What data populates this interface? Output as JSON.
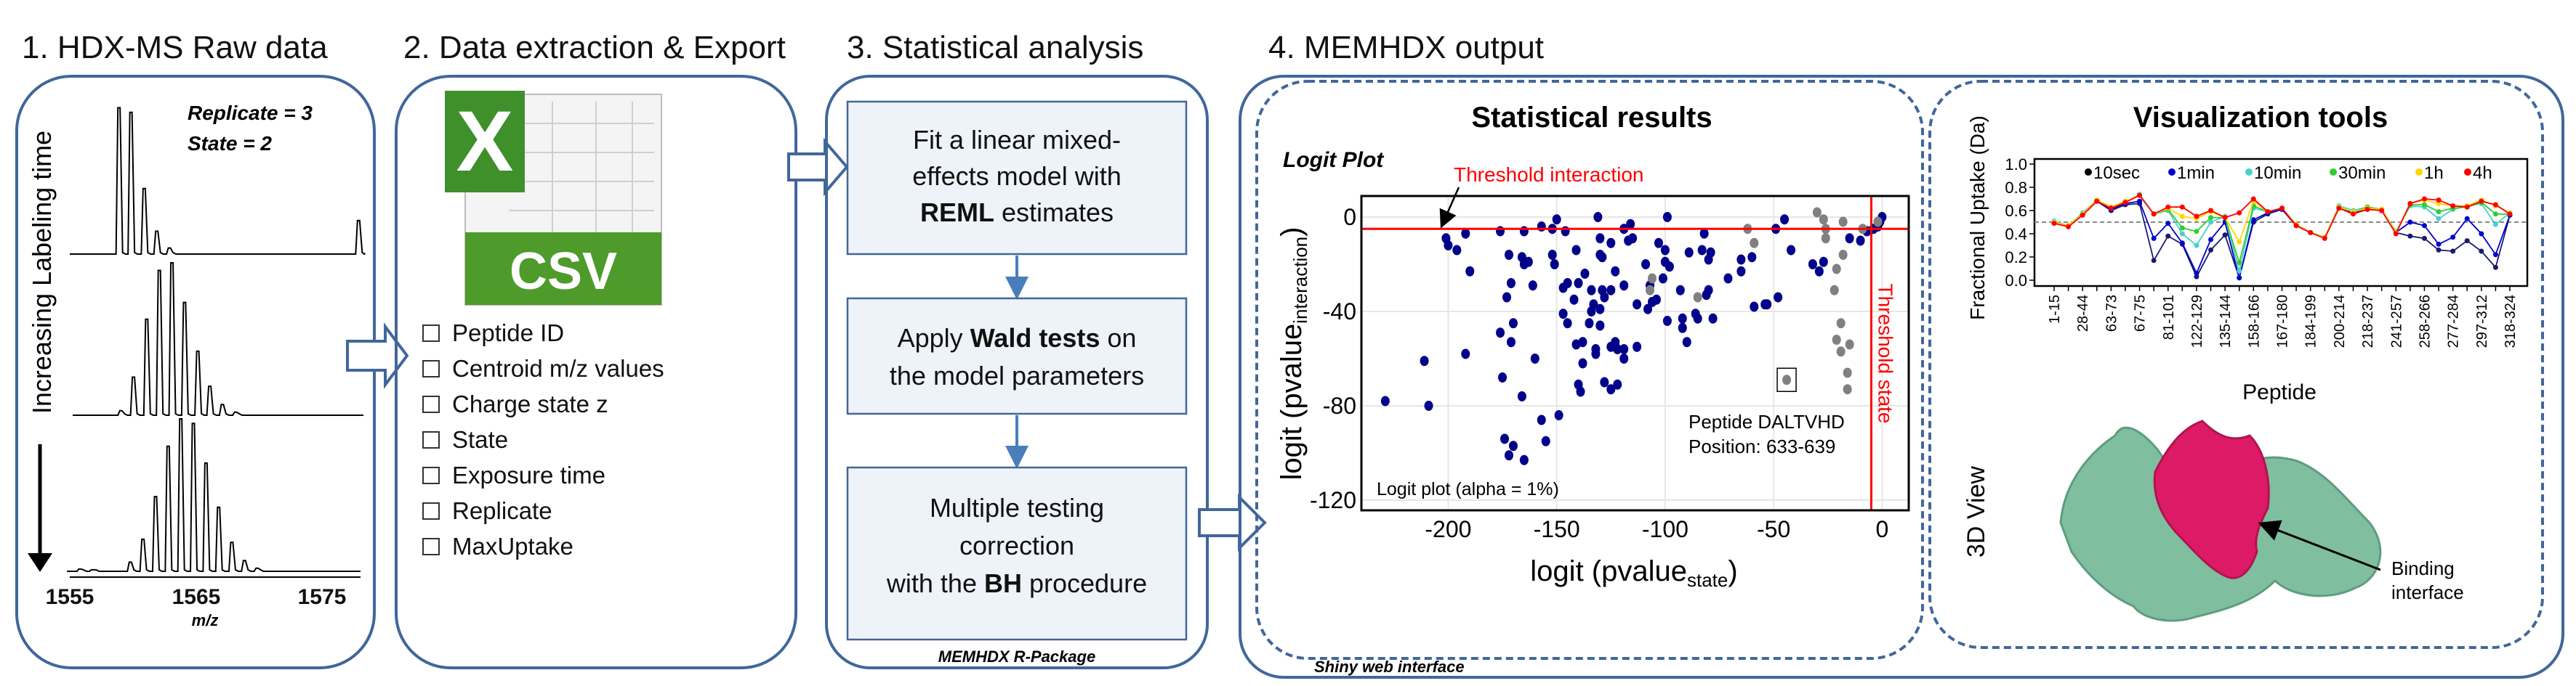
{
  "panels": {
    "raw": {
      "title": "1. HDX-MS Raw data",
      "replicate": "Replicate = 3",
      "state": "State = 2",
      "time_label": "Increasing Labeling time",
      "x_ticks": [
        "1555",
        "1565",
        "1575"
      ],
      "x_label": "m/z",
      "spectra": [
        {
          "peaks": [
            [
              1558.9,
              0.96
            ],
            [
              1559.85,
              0.93
            ],
            [
              1560.9,
              0.43
            ],
            [
              1561.9,
              0.15
            ],
            [
              1562.9,
              0.04
            ],
            [
              1577.9,
              0.22
            ]
          ]
        },
        {
          "peaks": [
            [
              1559.05,
              0.03
            ],
            [
              1560.05,
              0.25
            ],
            [
              1561.1,
              0.63
            ],
            [
              1562.1,
              0.95
            ],
            [
              1563.1,
              1.0
            ],
            [
              1564.1,
              0.74
            ],
            [
              1565.15,
              0.42
            ],
            [
              1566.1,
              0.19
            ],
            [
              1567.1,
              0.07
            ],
            [
              1568.15,
              0.02
            ]
          ]
        },
        {
          "peaks": [
            [
              1555.8,
              0.015
            ],
            [
              1556.8,
              0.01
            ],
            [
              1559.8,
              0.06
            ],
            [
              1560.8,
              0.21
            ],
            [
              1561.8,
              0.49
            ],
            [
              1562.8,
              0.82
            ],
            [
              1563.8,
              1.0
            ],
            [
              1564.8,
              0.97
            ],
            [
              1565.8,
              0.71
            ],
            [
              1566.8,
              0.42
            ],
            [
              1567.85,
              0.19
            ],
            [
              1568.85,
              0.07
            ],
            [
              1569.85,
              0.02
            ]
          ]
        }
      ]
    },
    "extract": {
      "title": "2. Data extraction & Export",
      "icon_letter": "X",
      "icon_label": "CSV",
      "fields": [
        "Peptide ID",
        "Centroid m/z values",
        "Charge state z",
        "State",
        "Exposure time",
        "Replicate",
        "MaxUptake"
      ]
    },
    "stats": {
      "title": "3. Statistical analysis",
      "step1": {
        "pre": "Fit a linear mixed-",
        "mid": "effects model with",
        "bold": "REML",
        "post": " estimates"
      },
      "step2": {
        "pre": "Apply ",
        "bold": "Wald tests",
        "post": " on",
        "line2": "the model parameters"
      },
      "step3": {
        "line1": "Multiple testing",
        "line2": "correction",
        "pre": "with the ",
        "bold": "BH",
        "post": " procedure"
      },
      "footer": "MEMHDX R-Package"
    },
    "output": {
      "title": "4. MEMHDX output",
      "footer": "Shiny web interface",
      "stat_title": "Statistical results",
      "viz_title": "Visualization tools",
      "view3d_label": "3D View",
      "binding_label_1": "Binding",
      "binding_label_2": "interface"
    }
  },
  "chart_data": [
    {
      "type": "scatter",
      "title": "Logit Plot",
      "xlabel": "logit (pvalue",
      "xlabel_sub": "state",
      "xlabel_end": ")",
      "ylabel": "logit (pvalue",
      "ylabel_sub": "interaction",
      "ylabel_end": ")",
      "xlim": [
        -240,
        12
      ],
      "ylim": [
        -124,
        9
      ],
      "x_ticks": [
        -200,
        -150,
        -100,
        -50,
        0
      ],
      "y_ticks": [
        0,
        -40,
        -80,
        -120
      ],
      "grid": true,
      "threshold_interaction": {
        "value": -5,
        "label": "Threshold interaction",
        "color": "#ff0000"
      },
      "threshold_state": {
        "value": -5,
        "label": "Threshold state",
        "color": "#ff0000"
      },
      "annotation": "Logit plot (alpha = 1%)",
      "highlight": {
        "x": -44,
        "y": -69,
        "label_1": "Peptide DALTVHD",
        "label_2": "Position: 633-639"
      },
      "colors": {
        "significant": "#00008b",
        "non_significant": "#808080"
      },
      "significant": [
        [
          -201,
          -9
        ],
        [
          -200,
          -12
        ],
        [
          -196,
          -14
        ],
        [
          -192,
          -7
        ],
        [
          -190,
          -23
        ],
        [
          -176,
          -6
        ],
        [
          -172,
          -16
        ],
        [
          -171,
          -28
        ],
        [
          -173,
          -34
        ],
        [
          -170,
          -45
        ],
        [
          -165,
          -6
        ],
        [
          -166,
          -17
        ],
        [
          -163,
          -19
        ],
        [
          -165,
          -20
        ],
        [
          -161,
          -29
        ],
        [
          -157,
          -4
        ],
        [
          -150,
          -1
        ],
        [
          -152,
          -5
        ],
        [
          -146,
          -6
        ],
        [
          -152,
          -16
        ],
        [
          -151,
          -20
        ],
        [
          -145,
          -28
        ],
        [
          -147,
          -30
        ],
        [
          -142,
          -35
        ],
        [
          -147,
          -41
        ],
        [
          -145,
          -45
        ],
        [
          -141,
          -14
        ],
        [
          -140,
          -28
        ],
        [
          -137,
          -24
        ],
        [
          -131,
          0
        ],
        [
          -130,
          -9
        ],
        [
          -130,
          -16
        ],
        [
          -129,
          -17
        ],
        [
          -134,
          -31
        ],
        [
          -129,
          -31
        ],
        [
          -128,
          -34
        ],
        [
          -125,
          -31
        ],
        [
          -133,
          -37
        ],
        [
          -134,
          -40
        ],
        [
          -130,
          -39
        ],
        [
          -135,
          -45
        ],
        [
          -130,
          -46
        ],
        [
          -123,
          -23
        ],
        [
          -125,
          -11
        ],
        [
          -119,
          -5
        ],
        [
          -116,
          -3
        ],
        [
          -117,
          -10
        ],
        [
          -115,
          -9
        ],
        [
          -119,
          -29
        ],
        [
          -113,
          -37
        ],
        [
          -108,
          -39
        ],
        [
          -109,
          -20
        ],
        [
          -107,
          -29
        ],
        [
          -104,
          -35
        ],
        [
          -106,
          -36
        ],
        [
          -103,
          -11
        ],
        [
          -100,
          -14
        ],
        [
          -101,
          -26
        ],
        [
          -99,
          0
        ],
        [
          -100,
          -19
        ],
        [
          -98,
          -21
        ],
        [
          -99,
          -44
        ],
        [
          -93,
          -31
        ],
        [
          -92,
          -43
        ],
        [
          -92,
          -47
        ],
        [
          -90,
          -53
        ],
        [
          -89,
          -15
        ],
        [
          -86,
          -41
        ],
        [
          -85,
          -43
        ],
        [
          -83,
          -14
        ],
        [
          -82,
          -7
        ],
        [
          -79,
          -15
        ],
        [
          -80,
          -18
        ],
        [
          -80,
          -31
        ],
        [
          -81,
          -33
        ],
        [
          -78,
          -43
        ],
        [
          -71,
          -26
        ],
        [
          -65,
          -23
        ],
        [
          -65,
          -18
        ],
        [
          -60,
          -17
        ],
        [
          -59,
          -38
        ],
        [
          -54,
          -37
        ],
        [
          -53,
          -37
        ],
        [
          -48,
          -34
        ],
        [
          -49,
          -5
        ],
        [
          -45,
          -1
        ],
        [
          -42,
          -14
        ],
        [
          -32,
          -20
        ],
        [
          -29,
          -23
        ],
        [
          -27,
          -19
        ],
        [
          -15,
          -9
        ],
        [
          -10,
          -10
        ],
        [
          -7,
          -6
        ],
        [
          -4,
          -5
        ],
        [
          -2,
          -4
        ],
        [
          0,
          0
        ],
        [
          -1,
          -2
        ],
        [
          -176,
          -49
        ],
        [
          -171,
          -53
        ],
        [
          -192,
          -58
        ],
        [
          -211,
          -61
        ],
        [
          -160,
          -60
        ],
        [
          -175,
          -68
        ],
        [
          -166,
          -76
        ],
        [
          -229,
          -78
        ],
        [
          -209,
          -80
        ],
        [
          -157,
          -86
        ],
        [
          -149,
          -84
        ],
        [
          -174,
          -94
        ],
        [
          -170,
          -97
        ],
        [
          -172,
          -101
        ],
        [
          -165,
          -103
        ],
        [
          -155,
          -95
        ],
        [
          -141,
          -54
        ],
        [
          -138,
          -53
        ],
        [
          -132,
          -56
        ],
        [
          -132,
          -58
        ],
        [
          -138,
          -62
        ],
        [
          -140,
          -71
        ],
        [
          -139,
          -74
        ],
        [
          -128,
          -70
        ],
        [
          -125,
          -73
        ],
        [
          -122,
          -71
        ],
        [
          -125,
          -55
        ],
        [
          -123,
          -53
        ],
        [
          -122,
          -56
        ],
        [
          -119,
          -56
        ],
        [
          -119,
          -60
        ],
        [
          -113,
          -55
        ]
      ],
      "non_significant": [
        [
          -106,
          -26
        ],
        [
          -107,
          -31
        ],
        [
          -85,
          -34
        ],
        [
          -62,
          -5
        ],
        [
          -59,
          -11
        ],
        [
          -30,
          2
        ],
        [
          -27,
          -1
        ],
        [
          -26,
          -5
        ],
        [
          -26,
          -9
        ],
        [
          -18,
          -16
        ],
        [
          -18,
          -2
        ],
        [
          -21,
          -22
        ],
        [
          -22,
          -31
        ],
        [
          -19,
          -45
        ],
        [
          -21,
          -52
        ],
        [
          -19,
          -57
        ],
        [
          -15,
          -54
        ],
        [
          -16,
          -66
        ],
        [
          -16,
          -73
        ],
        [
          -44,
          -69
        ],
        [
          -9,
          -5
        ],
        [
          -2,
          -2
        ]
      ]
    },
    {
      "type": "line",
      "ylabel": "Fractional Uptake (Da)",
      "xlabel": "Peptide",
      "ylim": [
        0,
        1.0
      ],
      "y_ticks": [
        "0.0",
        "0.2",
        "0.4",
        "0.6",
        "0.8",
        "1.0"
      ],
      "reference_line": 0.5,
      "tick_labels": [
        "1-15",
        "28-44",
        "63-73",
        "67-75",
        "81-101",
        "122-129",
        "135-144",
        "158-166",
        "167-180",
        "184-199",
        "200-214",
        "218-237",
        "241-257",
        "258-266",
        "277-284",
        "297-312",
        "318-324"
      ],
      "legend_position": "top",
      "series": [
        {
          "name": "10sec",
          "color": "#1a1a6e",
          "legend_color": "#000000",
          "values": [
            0.5,
            0.47,
            0.57,
            0.68,
            0.6,
            0.65,
            0.66,
            0.17,
            0.38,
            0.31,
            0.03,
            0.26,
            0.39,
            0.02,
            0.5,
            0.57,
            0.61,
            0.47,
            0.41,
            0.37,
            0.62,
            0.58,
            0.61,
            0.6,
            0.41,
            0.38,
            0.36,
            0.26,
            0.25,
            0.34,
            0.25,
            0.11,
            0.56
          ]
        },
        {
          "name": "1min",
          "color": "#0000cc",
          "values": [
            0.5,
            0.47,
            0.57,
            0.68,
            0.61,
            0.66,
            0.68,
            0.36,
            0.49,
            0.32,
            0.06,
            0.35,
            0.5,
            0.02,
            0.52,
            0.58,
            0.61,
            0.47,
            0.41,
            0.37,
            0.63,
            0.58,
            0.62,
            0.6,
            0.41,
            0.5,
            0.47,
            0.31,
            0.37,
            0.53,
            0.4,
            0.22,
            0.56
          ]
        },
        {
          "name": "10min",
          "color": "#48d1cc",
          "values": [
            0.51,
            0.47,
            0.58,
            0.69,
            0.62,
            0.67,
            0.74,
            0.57,
            0.6,
            0.4,
            0.3,
            0.5,
            0.55,
            0.08,
            0.62,
            0.59,
            0.62,
            0.48,
            0.41,
            0.37,
            0.64,
            0.6,
            0.63,
            0.61,
            0.42,
            0.64,
            0.63,
            0.53,
            0.61,
            0.64,
            0.66,
            0.48,
            0.58
          ]
        },
        {
          "name": "30min",
          "color": "#33cc33",
          "values": [
            0.5,
            0.47,
            0.57,
            0.69,
            0.63,
            0.68,
            0.73,
            0.57,
            0.61,
            0.45,
            0.42,
            0.54,
            0.54,
            0.15,
            0.64,
            0.59,
            0.62,
            0.48,
            0.41,
            0.37,
            0.63,
            0.59,
            0.63,
            0.61,
            0.41,
            0.65,
            0.65,
            0.59,
            0.62,
            0.63,
            0.67,
            0.57,
            0.57
          ]
        },
        {
          "name": "1h",
          "color": "#ffd700",
          "values": [
            0.5,
            0.47,
            0.57,
            0.69,
            0.63,
            0.68,
            0.73,
            0.57,
            0.62,
            0.55,
            0.53,
            0.59,
            0.54,
            0.33,
            0.68,
            0.59,
            0.62,
            0.48,
            0.41,
            0.37,
            0.63,
            0.59,
            0.62,
            0.61,
            0.41,
            0.66,
            0.69,
            0.66,
            0.64,
            0.64,
            0.69,
            0.64,
            0.58
          ]
        },
        {
          "name": "4h",
          "color": "#ff0000",
          "values": [
            0.49,
            0.46,
            0.56,
            0.68,
            0.62,
            0.67,
            0.73,
            0.57,
            0.63,
            0.63,
            0.55,
            0.6,
            0.54,
            0.58,
            0.7,
            0.59,
            0.62,
            0.47,
            0.41,
            0.36,
            0.62,
            0.57,
            0.61,
            0.6,
            0.4,
            0.66,
            0.7,
            0.69,
            0.64,
            0.63,
            0.68,
            0.65,
            0.57
          ]
        }
      ]
    }
  ]
}
